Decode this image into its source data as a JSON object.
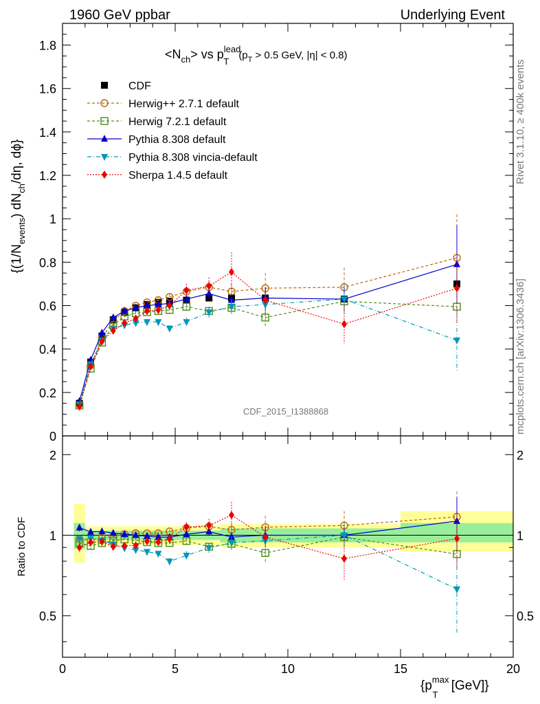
{
  "header": {
    "left": "1960 GeV ppbar",
    "right": "Underlying Event"
  },
  "side_text": {
    "rivet": "Rivet 3.1.10, ≥ 400k events",
    "mcplots": "mcplots.cern.ch [arXiv:1306.3436]"
  },
  "chart_data": {
    "type": "scatter",
    "title": {
      "main": "<N",
      "sub1": "ch",
      "mid": "> vs p",
      "sup": "lead",
      "sub2": "T",
      "cut_a": "(p",
      "cut_sub": "T",
      "cut_b": " > 0.5 GeV, |η| < 0.8)"
    },
    "ylabel": {
      "p1": "{(1/N",
      "s1": "events",
      "p2": ") dN",
      "s2": "ch",
      "p3": "/dη, dϕ}"
    },
    "ratio_ylabel": "Ratio to CDF",
    "xlabel": {
      "p1": "{p",
      "sup": "max",
      "sub": "T",
      "p2": " [GeV]}"
    },
    "watermark": "CDF_2015_I1388868",
    "xlim": [
      0,
      20
    ],
    "ylim": [
      0,
      1.9
    ],
    "ratio_ylim": [
      0.35,
      2.35
    ],
    "x_ticks": [
      "0",
      "5",
      "10",
      "15",
      "20"
    ],
    "y_ticks": [
      "0",
      "0.2",
      "0.4",
      "0.6",
      "0.8",
      "1",
      "1.2",
      "1.4",
      "1.6",
      "1.8"
    ],
    "ratio_y_ticks": [
      "0.5",
      "1",
      "2"
    ],
    "x": [
      0.75,
      1.25,
      1.75,
      2.25,
      2.75,
      3.25,
      3.75,
      4.25,
      4.75,
      5.5,
      6.5,
      7.5,
      9.0,
      12.5,
      17.5
    ],
    "band_inner": [
      {
        "x0": 0.5,
        "x1": 1.0,
        "lo": 0.89,
        "hi": 1.11
      },
      {
        "x0": 1.0,
        "x1": 7.0,
        "lo": 0.96,
        "hi": 1.04
      },
      {
        "x0": 7.0,
        "x1": 15.0,
        "lo": 0.94,
        "hi": 1.06
      },
      {
        "x0": 15.0,
        "x1": 20.0,
        "lo": 0.94,
        "hi": 1.11
      }
    ],
    "band_outer": [
      {
        "x0": 0.5,
        "x1": 1.0,
        "lo": 0.79,
        "hi": 1.31
      },
      {
        "x0": 1.0,
        "x1": 7.0,
        "lo": 0.92,
        "hi": 1.08
      },
      {
        "x0": 7.0,
        "x1": 15.0,
        "lo": 0.9,
        "hi": 1.1
      },
      {
        "x0": 15.0,
        "x1": 20.0,
        "lo": 0.87,
        "hi": 1.23
      }
    ],
    "series": [
      {
        "name": "CDF",
        "color": "#000000",
        "marker": "square-filled",
        "dash": "none",
        "y": [
          0.15,
          0.34,
          0.46,
          0.535,
          0.57,
          0.59,
          0.605,
          0.615,
          0.62,
          0.625,
          0.635,
          0.635,
          0.635,
          0.63,
          0.7
        ],
        "err": [
          0.01,
          0.01,
          0.01,
          0.01,
          0.01,
          0.01,
          0.01,
          0.01,
          0.01,
          0.01,
          0.01,
          0.01,
          0.01,
          0.02,
          0.02
        ]
      },
      {
        "name": "Herwig++ 2.7.1 default",
        "color": "#b8660b",
        "marker": "circle-open",
        "dash": "4,3",
        "y": [
          0.145,
          0.325,
          0.45,
          0.53,
          0.575,
          0.6,
          0.615,
          0.625,
          0.64,
          0.665,
          0.685,
          0.665,
          0.68,
          0.685,
          0.82
        ],
        "err": [
          0.005,
          0.01,
          0.01,
          0.01,
          0.01,
          0.01,
          0.01,
          0.01,
          0.012,
          0.02,
          0.03,
          0.04,
          0.07,
          0.09,
          0.2
        ]
      },
      {
        "name": "Herwig 7.2.1 default",
        "color": "#4a8a16",
        "marker": "square-open",
        "dash": "4,3",
        "y": [
          0.14,
          0.31,
          0.43,
          0.51,
          0.55,
          0.565,
          0.57,
          0.575,
          0.58,
          0.595,
          0.575,
          0.59,
          0.545,
          0.62,
          0.595
        ],
        "err": [
          0.005,
          0.01,
          0.01,
          0.01,
          0.01,
          0.01,
          0.01,
          0.01,
          0.012,
          0.015,
          0.02,
          0.03,
          0.04,
          0.05,
          0.07
        ]
      },
      {
        "name": "Pythia 8.308 default",
        "color": "#0000cc",
        "marker": "triangle-up",
        "dash": "none",
        "y": [
          0.16,
          0.35,
          0.475,
          0.545,
          0.575,
          0.59,
          0.6,
          0.605,
          0.61,
          0.63,
          0.655,
          0.625,
          0.635,
          0.63,
          0.79
        ],
        "err": [
          0.005,
          0.01,
          0.01,
          0.01,
          0.01,
          0.01,
          0.01,
          0.01,
          0.012,
          0.015,
          0.02,
          0.03,
          0.05,
          0.06,
          0.18
        ]
      },
      {
        "name": "Pythia 8.308 vincia-default",
        "color": "#0097b8",
        "marker": "triangle-down",
        "dash": "6,3,1,3",
        "y": [
          0.145,
          0.33,
          0.44,
          0.495,
          0.51,
          0.52,
          0.525,
          0.525,
          0.495,
          0.525,
          0.57,
          0.595,
          0.605,
          0.63,
          0.44
        ],
        "err": [
          0.005,
          0.01,
          0.01,
          0.01,
          0.01,
          0.01,
          0.01,
          0.012,
          0.015,
          0.02,
          0.025,
          0.035,
          0.05,
          0.07,
          0.14
        ]
      },
      {
        "name": "Sherpa 1.4.5 default",
        "color": "#ee0000",
        "marker": "diamond",
        "dash": "2,2",
        "y": [
          0.135,
          0.32,
          0.435,
          0.485,
          0.52,
          0.54,
          0.575,
          0.58,
          0.6,
          0.67,
          0.69,
          0.755,
          0.625,
          0.515,
          0.68
        ],
        "err": [
          0.005,
          0.01,
          0.01,
          0.01,
          0.01,
          0.012,
          0.015,
          0.02,
          0.025,
          0.03,
          0.04,
          0.09,
          0.06,
          0.09,
          0.16
        ]
      }
    ],
    "legend_position": "top-left"
  }
}
